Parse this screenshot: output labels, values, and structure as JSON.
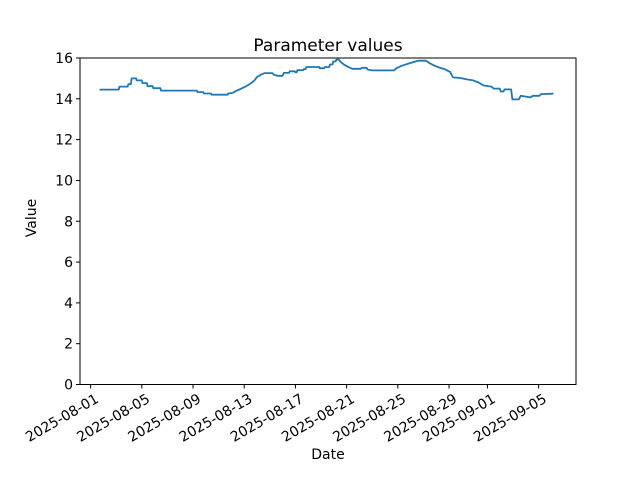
{
  "figure": {
    "title": "Parameter values",
    "xlabel": "Date",
    "ylabel": "Value"
  },
  "chart_data": {
    "type": "line",
    "title": "Parameter values",
    "xlabel": "Date",
    "ylabel": "Value",
    "grid": false,
    "legend": null,
    "line_color": "#1f77b4",
    "x_unit": "days_since_2025-08-01",
    "xlim": [
      -0.83,
      37.92
    ],
    "ylim": [
      0,
      16
    ],
    "y_ticks": [
      0,
      2,
      4,
      6,
      8,
      10,
      12,
      14,
      16
    ],
    "x_ticks": [
      {
        "label": "2025-08-01",
        "day": 0
      },
      {
        "label": "2025-08-05",
        "day": 4
      },
      {
        "label": "2025-08-09",
        "day": 8
      },
      {
        "label": "2025-08-13",
        "day": 12
      },
      {
        "label": "2025-08-17",
        "day": 16
      },
      {
        "label": "2025-08-21",
        "day": 20
      },
      {
        "label": "2025-08-25",
        "day": 24
      },
      {
        "label": "2025-08-29",
        "day": 28
      },
      {
        "label": "2025-09-01",
        "day": 31
      },
      {
        "label": "2025-09-05",
        "day": 35
      }
    ],
    "series": [
      {
        "name": "parameter-values",
        "points": [
          [
            0.75,
            14.45
          ],
          [
            2.2,
            14.45
          ],
          [
            2.25,
            14.6
          ],
          [
            2.9,
            14.6
          ],
          [
            2.95,
            14.72
          ],
          [
            3.15,
            14.72
          ],
          [
            3.2,
            15.0
          ],
          [
            3.55,
            15.0
          ],
          [
            3.6,
            14.9
          ],
          [
            4.0,
            14.9
          ],
          [
            4.05,
            14.77
          ],
          [
            4.4,
            14.77
          ],
          [
            4.45,
            14.62
          ],
          [
            4.85,
            14.62
          ],
          [
            4.9,
            14.52
          ],
          [
            5.45,
            14.52
          ],
          [
            5.5,
            14.4
          ],
          [
            8.3,
            14.4
          ],
          [
            8.35,
            14.33
          ],
          [
            8.8,
            14.33
          ],
          [
            8.85,
            14.26
          ],
          [
            9.4,
            14.26
          ],
          [
            9.45,
            14.2
          ],
          [
            10.7,
            14.2
          ],
          [
            10.75,
            14.26
          ],
          [
            11.1,
            14.29
          ],
          [
            11.3,
            14.37
          ],
          [
            11.7,
            14.48
          ],
          [
            12.1,
            14.6
          ],
          [
            12.5,
            14.75
          ],
          [
            12.8,
            14.9
          ],
          [
            13.0,
            15.07
          ],
          [
            13.3,
            15.18
          ],
          [
            13.6,
            15.26
          ],
          [
            14.2,
            15.26
          ],
          [
            14.3,
            15.18
          ],
          [
            14.6,
            15.13
          ],
          [
            15.0,
            15.13
          ],
          [
            15.1,
            15.27
          ],
          [
            15.5,
            15.27
          ],
          [
            15.55,
            15.35
          ],
          [
            15.95,
            15.35
          ],
          [
            16.0,
            15.3
          ],
          [
            16.1,
            15.3
          ],
          [
            16.15,
            15.4
          ],
          [
            16.6,
            15.4
          ],
          [
            16.65,
            15.45
          ],
          [
            16.8,
            15.45
          ],
          [
            16.85,
            15.56
          ],
          [
            17.85,
            15.56
          ],
          [
            17.9,
            15.5
          ],
          [
            18.25,
            15.5
          ],
          [
            18.3,
            15.56
          ],
          [
            18.65,
            15.56
          ],
          [
            18.7,
            15.68
          ],
          [
            18.9,
            15.68
          ],
          [
            18.95,
            15.83
          ],
          [
            19.15,
            15.83
          ],
          [
            19.2,
            15.92
          ],
          [
            19.4,
            15.92
          ],
          [
            19.5,
            15.83
          ],
          [
            19.8,
            15.67
          ],
          [
            20.1,
            15.57
          ],
          [
            20.45,
            15.47
          ],
          [
            21.1,
            15.47
          ],
          [
            21.2,
            15.52
          ],
          [
            21.55,
            15.52
          ],
          [
            21.65,
            15.43
          ],
          [
            22.0,
            15.39
          ],
          [
            23.7,
            15.39
          ],
          [
            23.9,
            15.5
          ],
          [
            24.3,
            15.62
          ],
          [
            24.7,
            15.7
          ],
          [
            25.2,
            15.8
          ],
          [
            25.6,
            15.87
          ],
          [
            26.2,
            15.87
          ],
          [
            26.45,
            15.76
          ],
          [
            26.8,
            15.64
          ],
          [
            27.2,
            15.54
          ],
          [
            27.7,
            15.44
          ],
          [
            28.1,
            15.31
          ],
          [
            28.3,
            15.05
          ],
          [
            28.9,
            15.02
          ],
          [
            29.4,
            14.95
          ],
          [
            29.9,
            14.9
          ],
          [
            30.3,
            14.8
          ],
          [
            30.7,
            14.65
          ],
          [
            31.3,
            14.6
          ],
          [
            31.5,
            14.5
          ],
          [
            31.95,
            14.5
          ],
          [
            32.05,
            14.36
          ],
          [
            32.25,
            14.36
          ],
          [
            32.35,
            14.46
          ],
          [
            32.85,
            14.46
          ],
          [
            32.95,
            13.97
          ],
          [
            33.45,
            13.97
          ],
          [
            33.6,
            14.15
          ],
          [
            33.9,
            14.12
          ],
          [
            34.35,
            14.07
          ],
          [
            34.55,
            14.15
          ],
          [
            35.05,
            14.15
          ],
          [
            35.2,
            14.23
          ],
          [
            36.1,
            14.25
          ]
        ]
      }
    ]
  }
}
